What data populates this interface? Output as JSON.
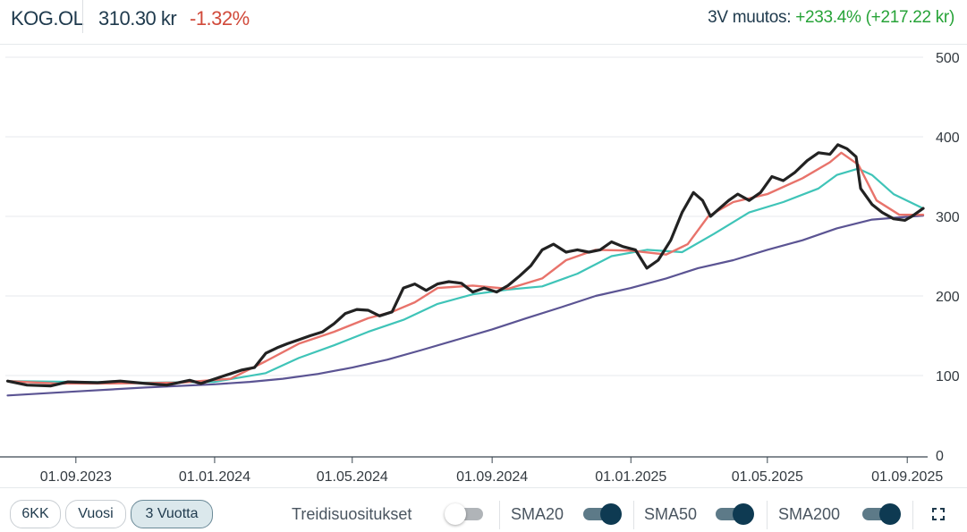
{
  "header": {
    "ticker": "KOG.OL",
    "price": "310.30 kr",
    "change_pct": "-1.32%",
    "period_change_label": "3V muutos:",
    "period_change_value": "+233.4% (+217.22 kr)"
  },
  "colors": {
    "price": "#222222",
    "sma20": "#e8736b",
    "sma50": "#3fc4b8",
    "sma200": "#5b5493",
    "negative": "#d14a3b",
    "positive": "#27a338"
  },
  "chart_data": {
    "type": "line",
    "ylim": [
      0,
      500
    ],
    "yticks": [
      "0",
      "100",
      "200",
      "300",
      "400",
      "500"
    ],
    "xticks": [
      "01.09.2023",
      "01.01.2024",
      "01.05.2024",
      "01.09.2024",
      "01.01.2025",
      "01.05.2025",
      "01.09.2025"
    ],
    "x_range": [
      "2023-07-01",
      "2025-09-15"
    ],
    "grid": true,
    "series": [
      {
        "key": "price",
        "x": [
          "2023-07-03",
          "2023-07-20",
          "2023-08-10",
          "2023-08-25",
          "2023-09-20",
          "2023-10-10",
          "2023-11-01",
          "2023-11-20",
          "2023-12-10",
          "2023-12-20",
          "2024-01-10",
          "2024-01-25",
          "2024-02-05",
          "2024-02-15",
          "2024-02-25",
          "2024-03-05",
          "2024-03-15",
          "2024-03-25",
          "2024-04-05",
          "2024-04-15",
          "2024-04-25",
          "2024-05-05",
          "2024-05-15",
          "2024-05-25",
          "2024-06-05",
          "2024-06-15",
          "2024-06-25",
          "2024-07-05",
          "2024-07-15",
          "2024-07-25",
          "2024-08-05",
          "2024-08-15",
          "2024-08-25",
          "2024-09-05",
          "2024-09-15",
          "2024-09-25",
          "2024-10-05",
          "2024-10-15",
          "2024-10-25",
          "2024-11-05",
          "2024-11-15",
          "2024-11-25",
          "2024-12-05",
          "2024-12-15",
          "2024-12-25",
          "2025-01-05",
          "2025-01-15",
          "2025-01-25",
          "2025-02-05",
          "2025-02-15",
          "2025-02-25",
          "2025-03-05",
          "2025-03-12",
          "2025-03-20",
          "2025-03-28",
          "2025-04-05",
          "2025-04-15",
          "2025-04-25",
          "2025-05-05",
          "2025-05-15",
          "2025-05-25",
          "2025-06-05",
          "2025-06-15",
          "2025-06-25",
          "2025-07-02",
          "2025-07-10",
          "2025-07-18",
          "2025-07-22",
          "2025-08-01",
          "2025-08-10",
          "2025-08-20",
          "2025-08-30",
          "2025-09-05",
          "2025-09-10",
          "2025-09-15"
        ],
        "values": [
          93,
          88,
          87,
          92,
          91,
          93,
          90,
          88,
          94,
          90,
          100,
          107,
          110,
          128,
          135,
          140,
          145,
          150,
          155,
          165,
          178,
          183,
          182,
          175,
          180,
          210,
          215,
          207,
          215,
          218,
          216,
          205,
          210,
          205,
          213,
          225,
          238,
          258,
          265,
          255,
          258,
          255,
          258,
          268,
          262,
          258,
          235,
          245,
          270,
          305,
          330,
          320,
          300,
          310,
          320,
          328,
          320,
          330,
          350,
          345,
          355,
          370,
          380,
          378,
          390,
          385,
          375,
          335,
          315,
          305,
          297,
          295,
          300,
          305,
          310
        ]
      },
      {
        "key": "sma20",
        "x": [
          "2023-07-03",
          "2023-08-15",
          "2023-10-01",
          "2023-12-01",
          "2024-01-15",
          "2024-02-15",
          "2024-03-15",
          "2024-04-15",
          "2024-05-15",
          "2024-06-05",
          "2024-06-25",
          "2024-07-15",
          "2024-08-15",
          "2024-09-15",
          "2024-10-15",
          "2024-11-05",
          "2024-12-01",
          "2025-01-01",
          "2025-02-01",
          "2025-02-20",
          "2025-03-10",
          "2025-04-01",
          "2025-05-01",
          "2025-06-01",
          "2025-06-25",
          "2025-07-05",
          "2025-07-20",
          "2025-08-05",
          "2025-08-25",
          "2025-09-15"
        ],
        "values": [
          93,
          90,
          90,
          91,
          96,
          118,
          140,
          155,
          172,
          180,
          192,
          210,
          213,
          209,
          222,
          245,
          258,
          257,
          252,
          265,
          300,
          318,
          328,
          348,
          368,
          380,
          365,
          320,
          302,
          302
        ]
      },
      {
        "key": "sma50",
        "x": [
          "2023-07-03",
          "2023-09-01",
          "2023-11-01",
          "2024-01-01",
          "2024-02-15",
          "2024-03-15",
          "2024-04-15",
          "2024-05-15",
          "2024-06-15",
          "2024-07-15",
          "2024-08-15",
          "2024-09-15",
          "2024-10-15",
          "2024-11-15",
          "2024-12-15",
          "2025-01-15",
          "2025-02-15",
          "2025-03-15",
          "2025-04-15",
          "2025-05-15",
          "2025-06-15",
          "2025-07-01",
          "2025-07-20",
          "2025-08-01",
          "2025-08-20",
          "2025-09-15"
        ],
        "values": [
          93,
          92,
          91,
          92,
          103,
          122,
          138,
          155,
          170,
          190,
          202,
          208,
          212,
          228,
          250,
          258,
          255,
          278,
          305,
          318,
          335,
          352,
          360,
          352,
          328,
          310
        ]
      },
      {
        "key": "sma200",
        "x": [
          "2023-07-03",
          "2023-09-01",
          "2023-11-01",
          "2024-01-01",
          "2024-02-01",
          "2024-03-01",
          "2024-04-01",
          "2024-05-01",
          "2024-06-01",
          "2024-07-01",
          "2024-08-01",
          "2024-09-01",
          "2024-10-01",
          "2024-11-01",
          "2024-12-01",
          "2025-01-01",
          "2025-02-01",
          "2025-03-01",
          "2025-04-01",
          "2025-05-01",
          "2025-06-01",
          "2025-07-01",
          "2025-08-01",
          "2025-09-15"
        ],
        "values": [
          75,
          80,
          85,
          89,
          92,
          96,
          102,
          110,
          120,
          132,
          145,
          158,
          172,
          186,
          200,
          210,
          222,
          235,
          245,
          258,
          270,
          285,
          296,
          301
        ]
      }
    ]
  },
  "footer": {
    "ranges": [
      "6KK",
      "Vuosi",
      "3 Vuotta"
    ],
    "trade_recs_label": "Treidisuositukset",
    "sma20_label": "SMA20",
    "sma50_label": "SMA50",
    "sma200_label": "SMA200",
    "expand_icon": "expand-icon"
  }
}
